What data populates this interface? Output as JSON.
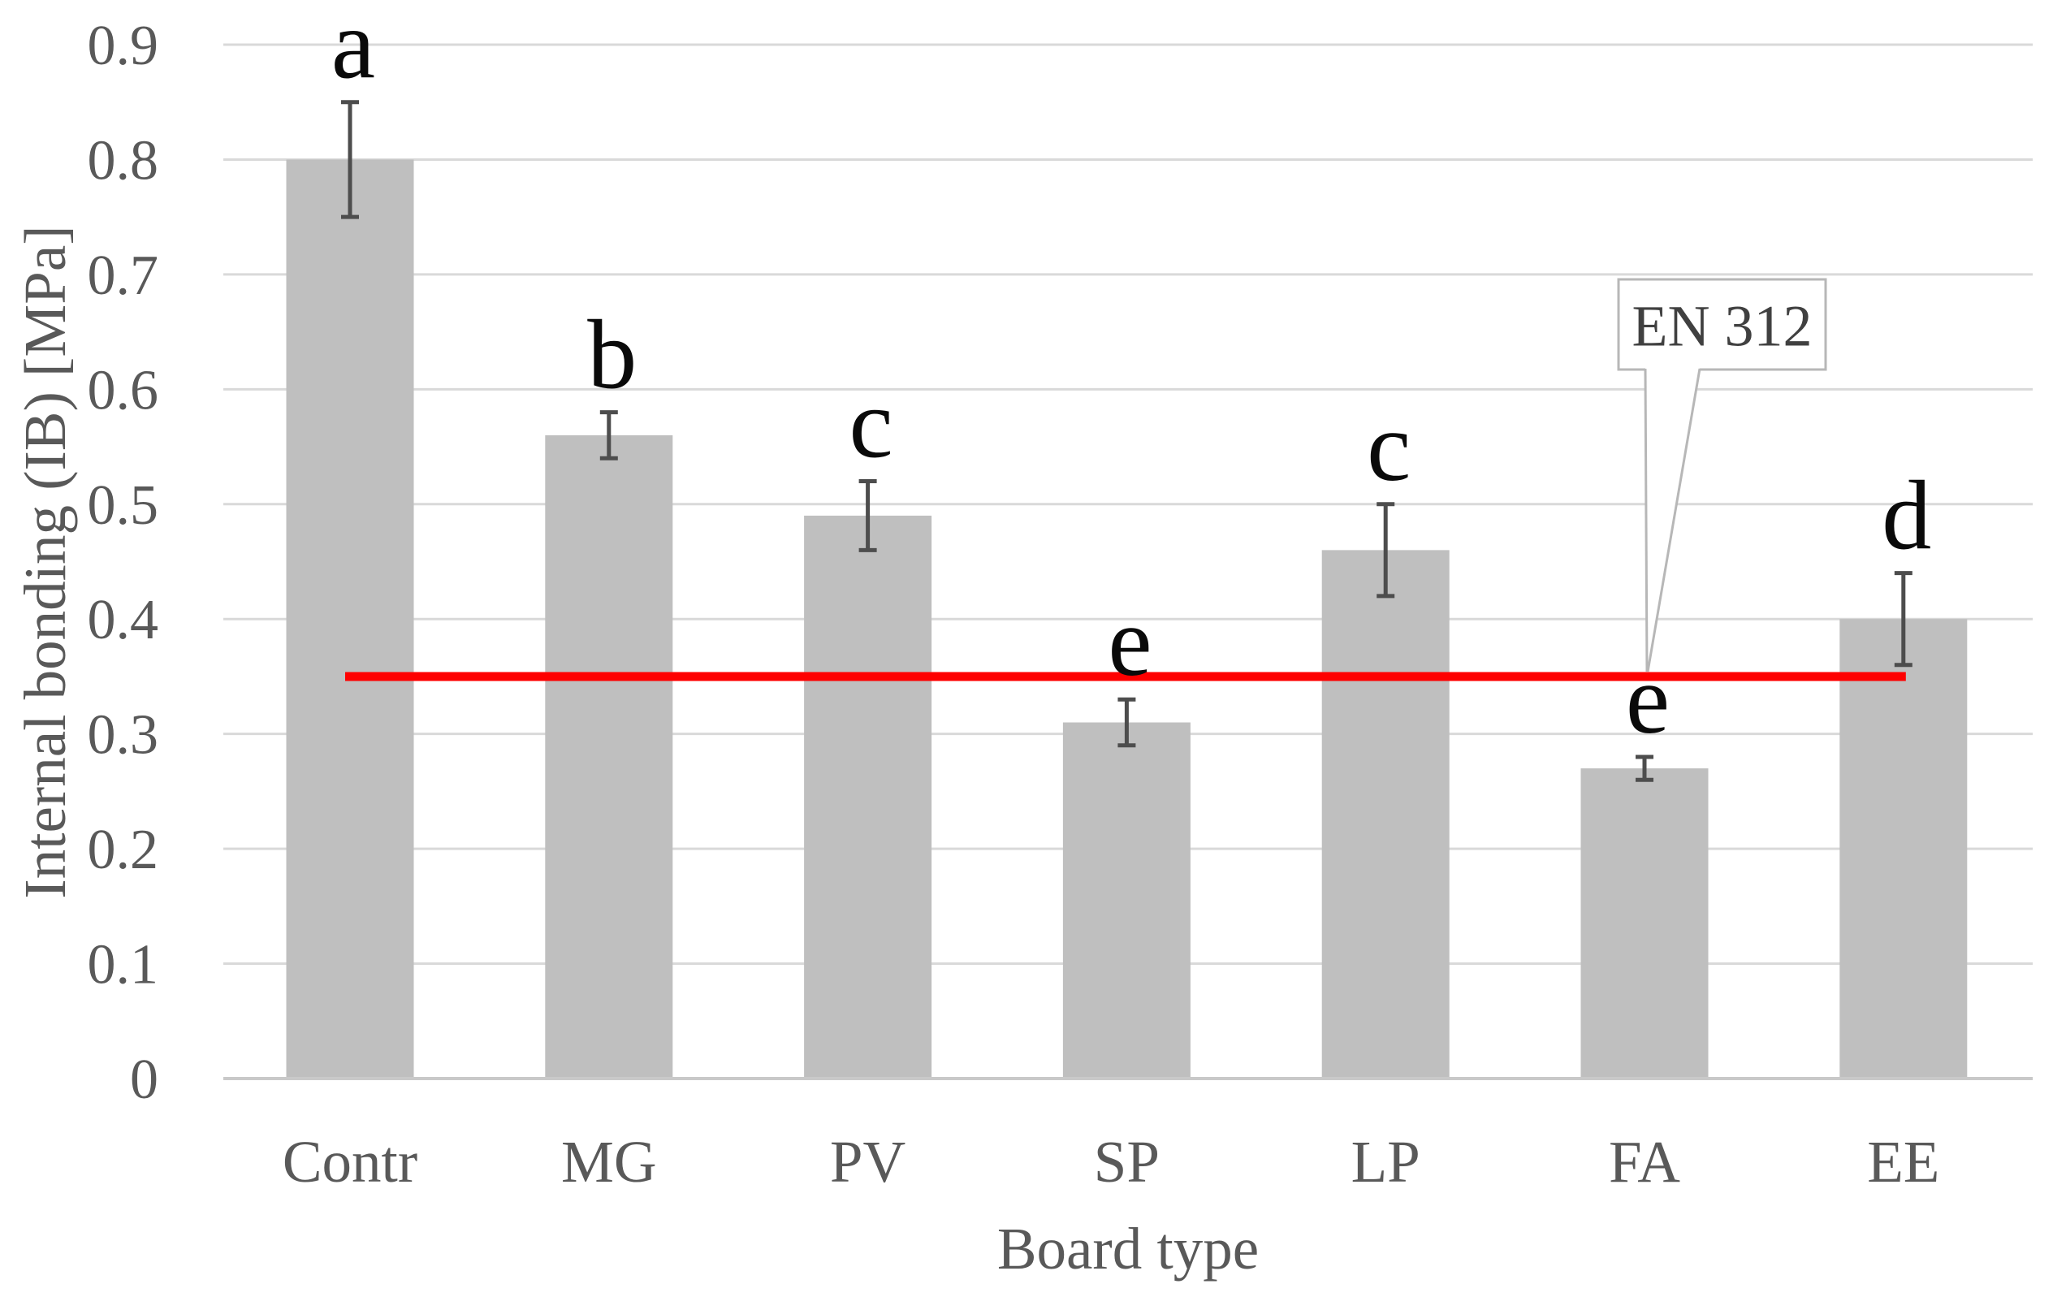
{
  "chart_data": {
    "type": "bar",
    "title": "",
    "xlabel": "Board type",
    "ylabel": "Internal bonding (IB) [MPa]",
    "categories": [
      "Contr",
      "MG",
      "PV",
      "SP",
      "LP",
      "FA",
      "EE"
    ],
    "values": [
      0.8,
      0.56,
      0.49,
      0.31,
      0.46,
      0.27,
      0.4
    ],
    "errors": [
      0.05,
      0.02,
      0.03,
      0.02,
      0.04,
      0.01,
      0.04
    ],
    "significance_letters": [
      "a",
      "b",
      "c",
      "e",
      "c",
      "e",
      "d"
    ],
    "ylim": [
      0,
      0.9
    ],
    "ytick_step": 0.1,
    "yticks": [
      "0",
      "0.1",
      "0.2",
      "0.3",
      "0.4",
      "0.5",
      "0.6",
      "0.7",
      "0.8",
      "0.9"
    ],
    "grid": true,
    "legend": "none",
    "reference_line": {
      "value": 0.35,
      "label": "EN 312"
    },
    "colors": {
      "bar": "#bfbfbf",
      "gridline": "#d9d9d9",
      "axis_line": "#c9c9c9",
      "error_bar": "#4d4d4d",
      "axis_text": "#595959",
      "letter_text": "#0a0a0a",
      "reference_line": "#fe0000",
      "callout_border": "#b7b7b7",
      "callout_fill": "#ffffff",
      "callout_text": "#404040",
      "background": "#ffffff"
    }
  }
}
